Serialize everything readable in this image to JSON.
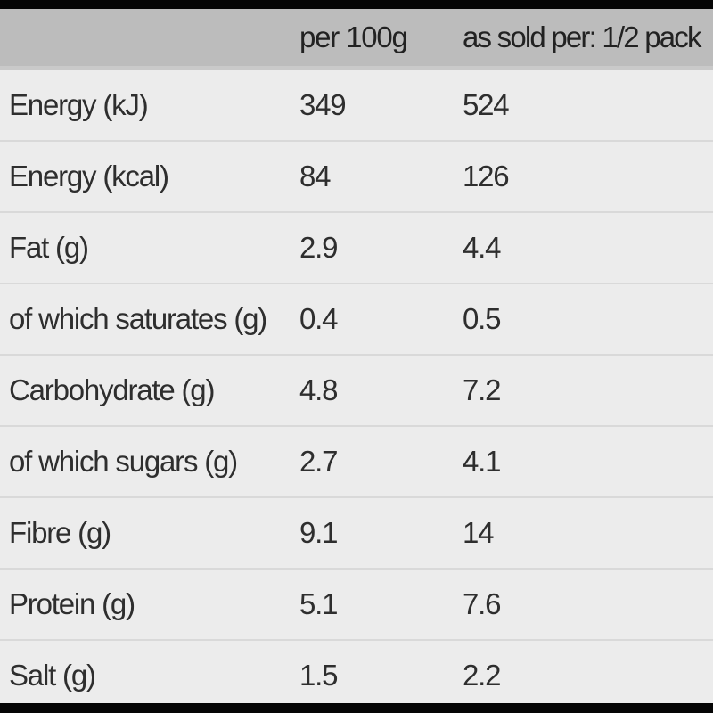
{
  "colors": {
    "letterbox_bar": "#050505",
    "header_background": "#bcbcbc",
    "header_bottom_edge": "#c9c9c9",
    "row_background": "#ececec",
    "row_divider": "#d9d9d9",
    "header_text": "#222222",
    "row_text": "#2e2e2e"
  },
  "table": {
    "header": {
      "label_column": "",
      "per_100g_column": "per 100g",
      "per_pack_column": "as sold per: 1/2 pack"
    },
    "rows": [
      {
        "label": "Energy (kJ)",
        "per_100g": "349",
        "per_pack": "524"
      },
      {
        "label": "Energy (kcal)",
        "per_100g": "84",
        "per_pack": "126"
      },
      {
        "label": "Fat (g)",
        "per_100g": "2.9",
        "per_pack": "4.4"
      },
      {
        "label": "of which saturates (g)",
        "per_100g": "0.4",
        "per_pack": "0.5"
      },
      {
        "label": "Carbohydrate (g)",
        "per_100g": "4.8",
        "per_pack": "7.2"
      },
      {
        "label": "of which sugars (g)",
        "per_100g": "2.7",
        "per_pack": "4.1"
      },
      {
        "label": "Fibre (g)",
        "per_100g": "9.1",
        "per_pack": "14"
      },
      {
        "label": "Protein (g)",
        "per_100g": "5.1",
        "per_pack": "7.6"
      },
      {
        "label": "Salt (g)",
        "per_100g": "1.5",
        "per_pack": "2.2"
      }
    ]
  }
}
